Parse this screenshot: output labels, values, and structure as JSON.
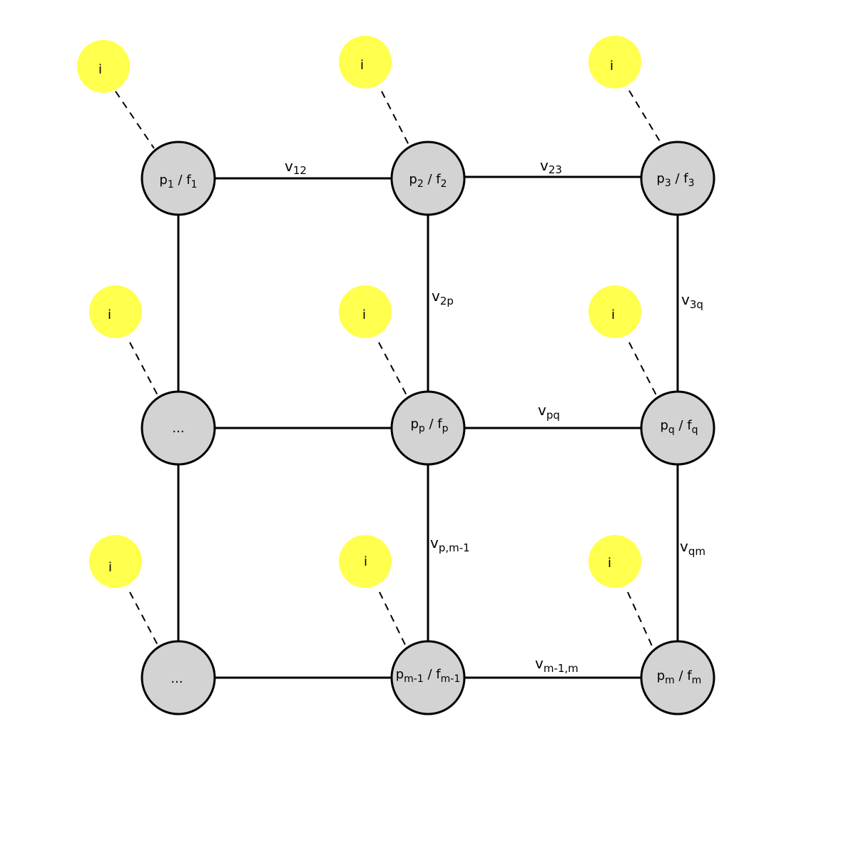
{
  "colors": {
    "node_fill": "#d3d3d3",
    "node_stroke": "#000000",
    "info_fill": "#ffff4d",
    "line": "#000000"
  },
  "nodes": [
    {
      "id": "n11",
      "main": "p",
      "sub": "1",
      "sep": " / f",
      "sub2": "1"
    },
    {
      "id": "n12",
      "main": "p",
      "sub": "2",
      "sep": " / f",
      "sub2": "2"
    },
    {
      "id": "n13",
      "main": "p",
      "sub": "3",
      "sep": " / f",
      "sub2": "3"
    },
    {
      "id": "n21",
      "plain": "..."
    },
    {
      "id": "n22",
      "main": "p",
      "sub": "p",
      "sep": " / f",
      "sub2": "p"
    },
    {
      "id": "n23",
      "main": "p",
      "sub": "q",
      "sep": " / f",
      "sub2": "q"
    },
    {
      "id": "n31",
      "plain": "..."
    },
    {
      "id": "n32",
      "main": "p",
      "sub": "m-1",
      "sep": " / f",
      "sub2": "m-1"
    },
    {
      "id": "n33",
      "main": "p",
      "sub": "m",
      "sep": " / f",
      "sub2": "m"
    }
  ],
  "info_label": "i",
  "edges": [
    {
      "id": "e12",
      "main": "v",
      "sub": "12"
    },
    {
      "id": "e23",
      "main": "v",
      "sub": "23"
    },
    {
      "id": "e2p",
      "main": "v",
      "sub": "2p"
    },
    {
      "id": "e3q",
      "main": "v",
      "sub": "3q"
    },
    {
      "id": "epq",
      "main": "v",
      "sub": "pq"
    },
    {
      "id": "epm",
      "main": "v",
      "sub": "p,m-1"
    },
    {
      "id": "eqm",
      "main": "v",
      "sub": "qm"
    },
    {
      "id": "emm",
      "main": "v",
      "sub": "m-1,m"
    }
  ]
}
